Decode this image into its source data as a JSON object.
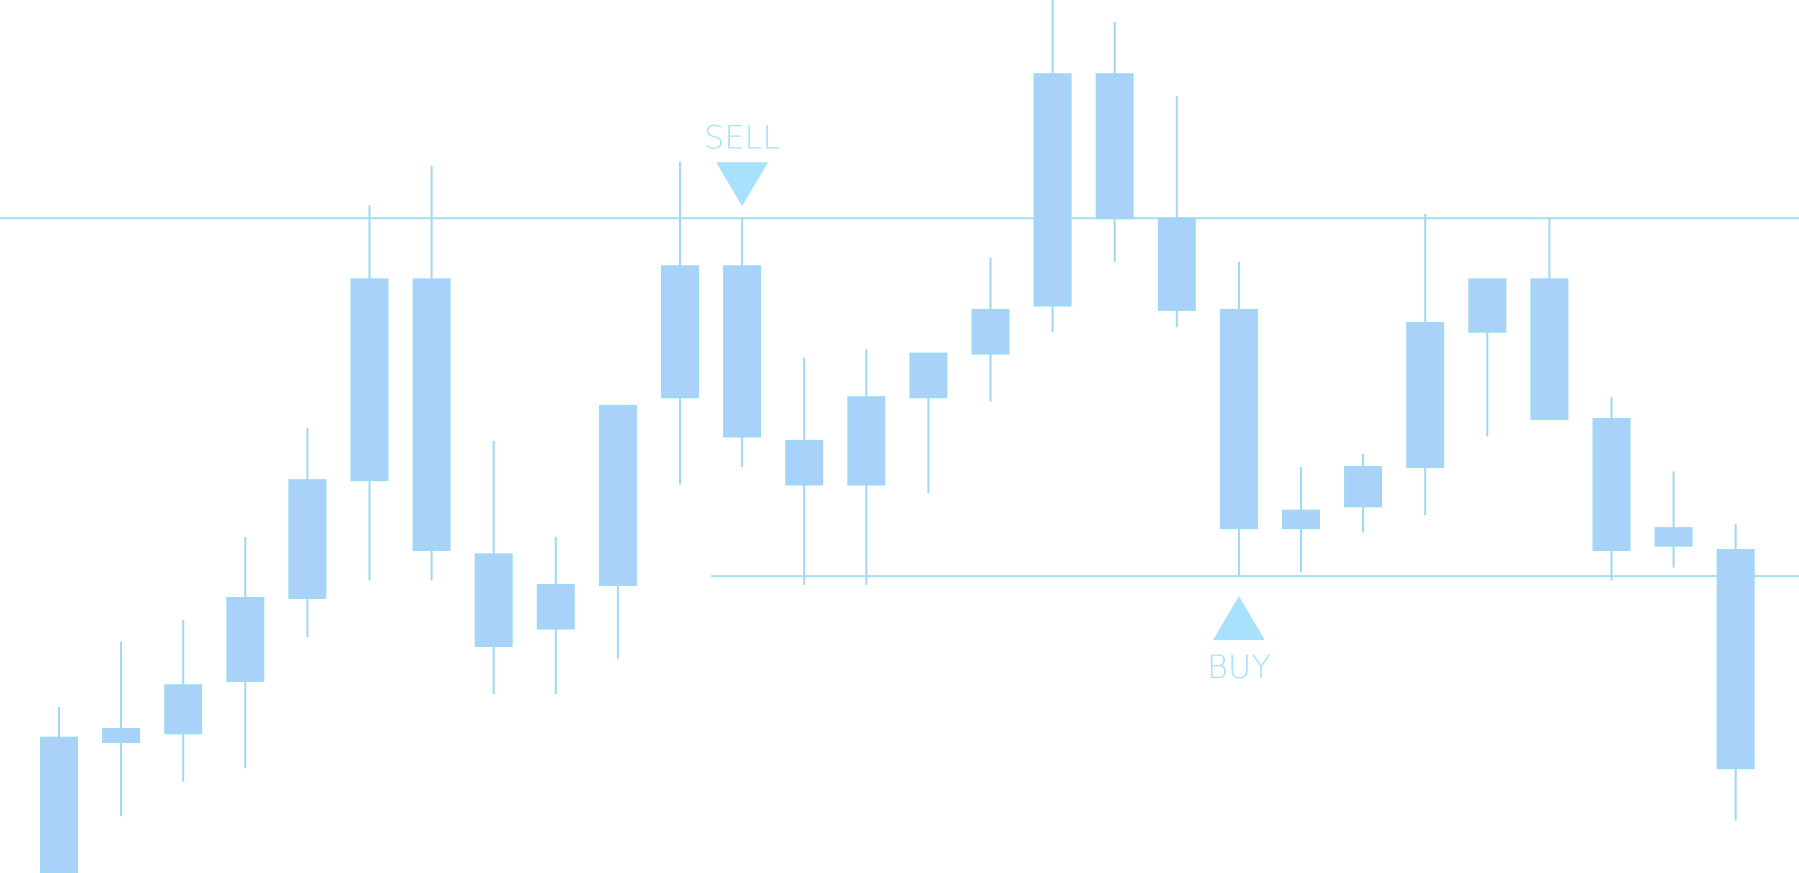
{
  "colors": {
    "background": "#ffffff",
    "candle_fill": "#a9d1fa",
    "candle_stroke": "#9ed8f2",
    "wick": "#9ed8f2",
    "level_line": "#a3def4",
    "signal": "#a7e1fb"
  },
  "chart_data": {
    "type": "candlestick",
    "title": "",
    "xlabel": "",
    "ylabel": "",
    "grid": false,
    "legend": "none",
    "ylim": [
      0,
      100
    ],
    "axes_visible": false,
    "candles": [
      {
        "open": 0.0,
        "close": 15.5,
        "high": 19.0,
        "low": 0.0
      },
      {
        "open": 16.5,
        "close": 15.0,
        "high": 26.5,
        "low": 6.5
      },
      {
        "open": 21.5,
        "close": 16.0,
        "high": 29.0,
        "low": 10.5
      },
      {
        "open": 22.0,
        "close": 31.5,
        "high": 38.5,
        "low": 12.0
      },
      {
        "open": 31.5,
        "close": 45.0,
        "high": 51.0,
        "low": 27.0
      },
      {
        "open": 45.0,
        "close": 68.0,
        "high": 76.5,
        "low": 33.5
      },
      {
        "open": 68.0,
        "close": 37.0,
        "high": 81.0,
        "low": 33.5
      },
      {
        "open": 36.5,
        "close": 26.0,
        "high": 49.5,
        "low": 20.5
      },
      {
        "open": 33.0,
        "close": 28.0,
        "high": 38.5,
        "low": 20.5
      },
      {
        "open": 53.5,
        "close": 33.0,
        "high": 53.5,
        "low": 24.5
      },
      {
        "open": 69.5,
        "close": 54.5,
        "high": 81.5,
        "low": 44.5
      },
      {
        "open": 69.5,
        "close": 50.0,
        "high": 75.0,
        "low": 46.5
      },
      {
        "open": 49.5,
        "close": 44.5,
        "high": 59.0,
        "low": 33.0
      },
      {
        "open": 54.5,
        "close": 44.5,
        "high": 60.0,
        "low": 33.0
      },
      {
        "open": 59.5,
        "close": 54.5,
        "high": 59.5,
        "low": 43.5
      },
      {
        "open": 64.5,
        "close": 59.5,
        "high": 70.5,
        "low": 54.0
      },
      {
        "open": 91.5,
        "close": 65.0,
        "high": 100.0,
        "low": 62.0
      },
      {
        "open": 91.5,
        "close": 75.0,
        "high": 97.5,
        "low": 70.0
      },
      {
        "open": 75.0,
        "close": 64.5,
        "high": 89.0,
        "low": 62.5
      },
      {
        "open": 64.5,
        "close": 39.5,
        "high": 70.0,
        "low": 34.0
      },
      {
        "open": 41.5,
        "close": 39.5,
        "high": 46.5,
        "low": 34.5
      },
      {
        "open": 46.5,
        "close": 42.0,
        "high": 48.0,
        "low": 39.0
      },
      {
        "open": 63.0,
        "close": 46.5,
        "high": 75.5,
        "low": 41.0
      },
      {
        "open": 68.0,
        "close": 62.0,
        "high": 68.0,
        "low": 50.0
      },
      {
        "open": 68.0,
        "close": 52.0,
        "high": 75.0,
        "low": 52.0
      },
      {
        "open": 52.0,
        "close": 37.0,
        "high": 54.5,
        "low": 33.5
      },
      {
        "open": 39.5,
        "close": 37.5,
        "high": 46.0,
        "low": 35.0
      },
      {
        "open": 37.0,
        "close": 12.0,
        "high": 40.0,
        "low": 6.0
      }
    ],
    "levels": [
      {
        "name": "resistance",
        "value": 75.0,
        "from_candle": 0
      },
      {
        "name": "support",
        "value": 34.0,
        "from_candle": 10.5
      }
    ],
    "signals": [
      {
        "label": "SELL",
        "direction": "down",
        "candle_index": 11
      },
      {
        "label": "BUY",
        "direction": "up",
        "candle_index": 19
      }
    ]
  }
}
